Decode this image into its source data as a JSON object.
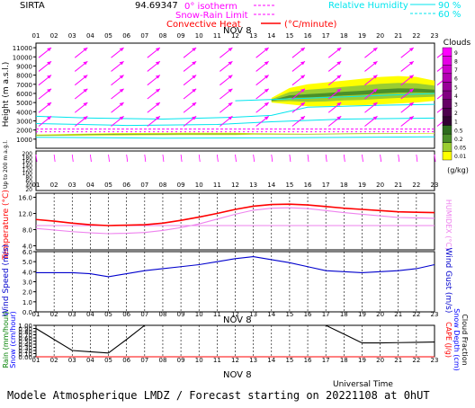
{
  "header": {
    "station": "SIRTA",
    "coords": "94.69347",
    "legend_isotherm": "0° isotherm",
    "legend_snow_rain": "Snow-Rain Limit",
    "legend_convective": "Convective Heat",
    "legend_convective_unit": "(°C/minute)",
    "legend_humidity": "Relative Humidity",
    "humidity_90": "90 %",
    "humidity_60": "60 %"
  },
  "hours": [
    "01",
    "02",
    "03",
    "04",
    "05",
    "06",
    "07",
    "08",
    "09",
    "10",
    "11",
    "12",
    "13",
    "14",
    "15",
    "16",
    "17",
    "18",
    "19",
    "20",
    "21",
    "22",
    "23"
  ],
  "date_label": "NOV 8",
  "time_axis_label": "Universal Time",
  "footer": "Modele Atmospherique LMDZ / Forecast starting on 20221108 at 0hUT",
  "colors": {
    "wind_arrow": "#ff00ff",
    "humidity": "#00e5ee",
    "temperature": "#ff0000",
    "humidex": "#ee82ee",
    "wind": "#0000cd",
    "rain": "#008000",
    "snow": "#0000ff",
    "cloud_fraction": "#000000",
    "cape": "#ff0000",
    "clouds_high": "#ffff00",
    "clouds_mid": "#9acd32",
    "clouds_low": "#4b8f29"
  },
  "chart_data": [
    {
      "type": "area",
      "panel": "upper-air",
      "ylabel": "Height (m a.s.l.)",
      "ylabel_lower": "Up to 200 m a.g.l.",
      "y_ticks_upper": [
        "11000",
        "10000",
        "9000",
        "8000",
        "7000",
        "6000",
        "5000",
        "4000",
        "3000",
        "2000",
        "1000"
      ],
      "y_ticks_lower": [
        "200",
        "180",
        "160",
        "140",
        "120",
        "100",
        "80",
        "60",
        "40",
        "20"
      ],
      "ylim_upper": [
        0,
        11500
      ],
      "clouds_legend_title": "Clouds",
      "clouds_legend_unit": "(g/kg)",
      "clouds_scale": [
        "9",
        "8",
        "7",
        "6",
        "5",
        "4",
        "3",
        "2",
        "1",
        "0.5",
        "0.2",
        "0.05",
        "0.01"
      ],
      "clouds_scale_colors": [
        "#ff00ff",
        "#e600e6",
        "#cc00cc",
        "#b300b3",
        "#990099",
        "#800080",
        "#660066",
        "#4d004d",
        "#330033",
        "#2e6b1e",
        "#4b8f29",
        "#9acd32",
        "#ffff00"
      ],
      "wind_direction_deg": 225,
      "cloud_layers": [
        {
          "name": "upper",
          "hours": [
            14,
            15,
            16,
            17,
            18,
            19,
            20,
            21,
            22,
            23
          ],
          "base_m": [
            5000,
            4800,
            4600,
            4600,
            4700,
            4700,
            4800,
            4900,
            5000,
            5200
          ],
          "top_m": [
            5500,
            6600,
            7000,
            7200,
            7400,
            7600,
            7800,
            7900,
            7800,
            7400
          ]
        },
        {
          "name": "low",
          "hours": [
            1,
            5,
            9,
            12,
            13,
            16,
            19,
            23
          ],
          "base_m": [
            1350,
            1400,
            1450,
            1450,
            1500,
            1500,
            1550,
            1600
          ],
          "top_m": [
            1500,
            1650,
            1700,
            1700,
            1650,
            1600,
            1650,
            1650
          ]
        }
      ],
      "isotherm_0_m": 2100,
      "snow_rain_limit_m": 1800
    },
    {
      "type": "line",
      "panel": "temperature",
      "ylabel": "Temperature (°C)",
      "ylabel_right": "HUMIDEX (°C)",
      "y_ticks": [
        "16.0",
        "12.0",
        "8.0",
        "4.0"
      ],
      "ylim": [
        3,
        17
      ],
      "x": [
        1,
        2,
        3,
        4,
        5,
        6,
        7,
        8,
        9,
        10,
        11,
        12,
        13,
        14,
        15,
        16,
        17,
        18,
        19,
        20,
        21,
        22,
        23
      ],
      "series": [
        {
          "name": "temperature",
          "values": [
            10.5,
            10.1,
            9.6,
            9.2,
            9.0,
            9.1,
            9.2,
            9.6,
            10.3,
            11.1,
            12.0,
            13.0,
            13.8,
            14.2,
            14.3,
            14.1,
            13.7,
            13.3,
            13.0,
            12.7,
            12.4,
            12.3,
            12.2
          ]
        },
        {
          "name": "humidex",
          "values": [
            8.3,
            7.9,
            7.5,
            7.2,
            7.0,
            7.1,
            7.3,
            7.8,
            8.5,
            9.4,
            10.6,
            11.8,
            12.8,
            13.3,
            13.4,
            13.2,
            12.7,
            12.2,
            11.8,
            11.4,
            11.0,
            10.9,
            10.8
          ]
        }
      ],
      "threshold_line": 9.0
    },
    {
      "type": "line",
      "panel": "wind",
      "ylabel": "Wind Speed (m/s)",
      "ylabel_right": "Wind Gust (m/s)",
      "y_ticks": [
        "6.0",
        "5.0",
        "4.0",
        "3.0",
        "2.0",
        "1.0",
        "0.0"
      ],
      "ylim": [
        0,
        6
      ],
      "x": [
        1,
        2,
        3,
        4,
        5,
        6,
        7,
        8,
        9,
        10,
        11,
        12,
        13,
        14,
        15,
        16,
        17,
        18,
        19,
        20,
        21,
        22,
        23
      ],
      "series": [
        {
          "name": "wind",
          "values": [
            3.9,
            3.9,
            3.9,
            3.8,
            3.5,
            3.8,
            4.1,
            4.3,
            4.5,
            4.7,
            5.0,
            5.3,
            5.5,
            5.2,
            4.9,
            4.5,
            4.1,
            4.0,
            3.9,
            4.0,
            4.1,
            4.3,
            4.7
          ]
        }
      ]
    },
    {
      "type": "line",
      "panel": "precipitation",
      "ylabel": "Rain (mm/hour)",
      "ylabel2": "Snow (cm/hour)",
      "ylabel_right": "CAPE (J/g)",
      "ylabel_right2": "Snow Depth (cm)",
      "ylabel_right3": "Cloud Fraction",
      "y_ticks": [
        "1.00",
        "0.90",
        "0.80",
        "0.70",
        "0.60",
        "0.50",
        "0.40",
        "0.30",
        "0.20",
        "0.10",
        "0.00"
      ],
      "ylim": [
        0,
        1
      ],
      "x": [
        1,
        2,
        3,
        4,
        5,
        6,
        7,
        8,
        9,
        10,
        11,
        12,
        13,
        14,
        15,
        16,
        17,
        18,
        19,
        20,
        21,
        22,
        23
      ],
      "series": [
        {
          "name": "cloud_fraction",
          "values": [
            0.9,
            0.55,
            0.2,
            0.16,
            0.12,
            0.55,
            1.0,
            1.0,
            1.0,
            1.0,
            1.0,
            1.0,
            1.0,
            1.0,
            1.0,
            1.0,
            1.0,
            0.72,
            0.44,
            0.44,
            0.45,
            0.46,
            0.47
          ]
        },
        {
          "name": "rain",
          "values": [
            0,
            0,
            0,
            0,
            0,
            0,
            0,
            0,
            0,
            0,
            0,
            0,
            0,
            0,
            0,
            0,
            0,
            0,
            0,
            0,
            0,
            0,
            0
          ]
        },
        {
          "name": "cape",
          "values": [
            0,
            0,
            0,
            0,
            0,
            0,
            0,
            0,
            0,
            0,
            0,
            0,
            0,
            0,
            0,
            0,
            0,
            0,
            0,
            0,
            0,
            0,
            0
          ]
        }
      ]
    }
  ]
}
